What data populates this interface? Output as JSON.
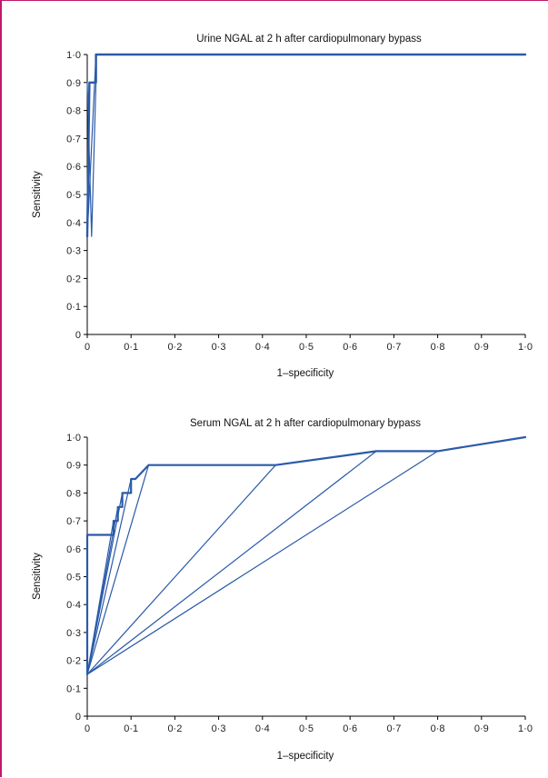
{
  "chart_data": [
    {
      "type": "line",
      "title": "Urine NGAL at 2 h after cardiopulmonary bypass",
      "xlabel": "1–specificity",
      "ylabel": "Sensitivity",
      "xlim": [
        0,
        1
      ],
      "ylim": [
        0,
        1
      ],
      "xticks": [
        "0",
        "0·1",
        "0·2",
        "0·3",
        "0·4",
        "0·5",
        "0·6",
        "0·7",
        "0·8",
        "0·9",
        "1·0"
      ],
      "yticks": [
        "0",
        "0·1",
        "0·2",
        "0·3",
        "0·4",
        "0·5",
        "0·6",
        "0·7",
        "0·8",
        "0·9",
        "1·0"
      ],
      "grid": false,
      "series": [
        {
          "points": [
            [
              0,
              0.35
            ],
            [
              0.005,
              0.9
            ],
            [
              0.02,
              0.9
            ],
            [
              0.02,
              1.0
            ],
            [
              1.0,
              1.0
            ]
          ],
          "width": 2.4
        },
        {
          "points": [
            [
              0,
              0.9
            ],
            [
              0.01,
              0.35
            ],
            [
              0.02,
              0.9
            ],
            [
              0.02,
              1.0
            ]
          ],
          "width": 1.2
        },
        {
          "points": [
            [
              0,
              0.35
            ],
            [
              0.02,
              1.0
            ]
          ],
          "width": 1.2
        }
      ]
    },
    {
      "type": "line",
      "title": "Serum NGAL at 2 h after cardiopulmonary bypass",
      "xlabel": "1–specificity",
      "ylabel": "Sensitivity",
      "xlim": [
        0,
        1
      ],
      "ylim": [
        0,
        1
      ],
      "xticks": [
        "0",
        "0·1",
        "0·2",
        "0·3",
        "0·4",
        "0·5",
        "0·6",
        "0·7",
        "0·8",
        "0·9",
        "1·0"
      ],
      "yticks": [
        "0",
        "0·1",
        "0·2",
        "0·3",
        "0·4",
        "0·5",
        "0·6",
        "0·7",
        "0·8",
        "0·9",
        "1·0"
      ],
      "grid": false,
      "series": [
        {
          "points": [
            [
              0,
              0.15
            ],
            [
              0,
              0.65
            ],
            [
              0.06,
              0.65
            ],
            [
              0.06,
              0.7
            ],
            [
              0.07,
              0.7
            ],
            [
              0.07,
              0.75
            ],
            [
              0.08,
              0.75
            ],
            [
              0.08,
              0.8
            ],
            [
              0.1,
              0.8
            ],
            [
              0.1,
              0.85
            ],
            [
              0.11,
              0.85
            ],
            [
              0.14,
              0.9
            ],
            [
              0.43,
              0.9
            ],
            [
              0.66,
              0.95
            ],
            [
              0.8,
              0.95
            ],
            [
              1.0,
              1.0
            ]
          ],
          "width": 2.2
        },
        {
          "points": [
            [
              0,
              0.15
            ],
            [
              0.06,
              0.7
            ]
          ],
          "width": 1.2
        },
        {
          "points": [
            [
              0,
              0.15
            ],
            [
              0.07,
              0.75
            ]
          ],
          "width": 1.2
        },
        {
          "points": [
            [
              0,
              0.15
            ],
            [
              0.08,
              0.8
            ]
          ],
          "width": 1.2
        },
        {
          "points": [
            [
              0,
              0.15
            ],
            [
              0.1,
              0.85
            ]
          ],
          "width": 1.2
        },
        {
          "points": [
            [
              0,
              0.15
            ],
            [
              0.14,
              0.9
            ]
          ],
          "width": 1.2
        },
        {
          "points": [
            [
              0,
              0.15
            ],
            [
              0.43,
              0.9
            ]
          ],
          "width": 1.2
        },
        {
          "points": [
            [
              0,
              0.15
            ],
            [
              0.66,
              0.95
            ]
          ],
          "width": 1.2
        },
        {
          "points": [
            [
              0,
              0.15
            ],
            [
              0.8,
              0.95
            ]
          ],
          "width": 1.2
        }
      ]
    }
  ]
}
